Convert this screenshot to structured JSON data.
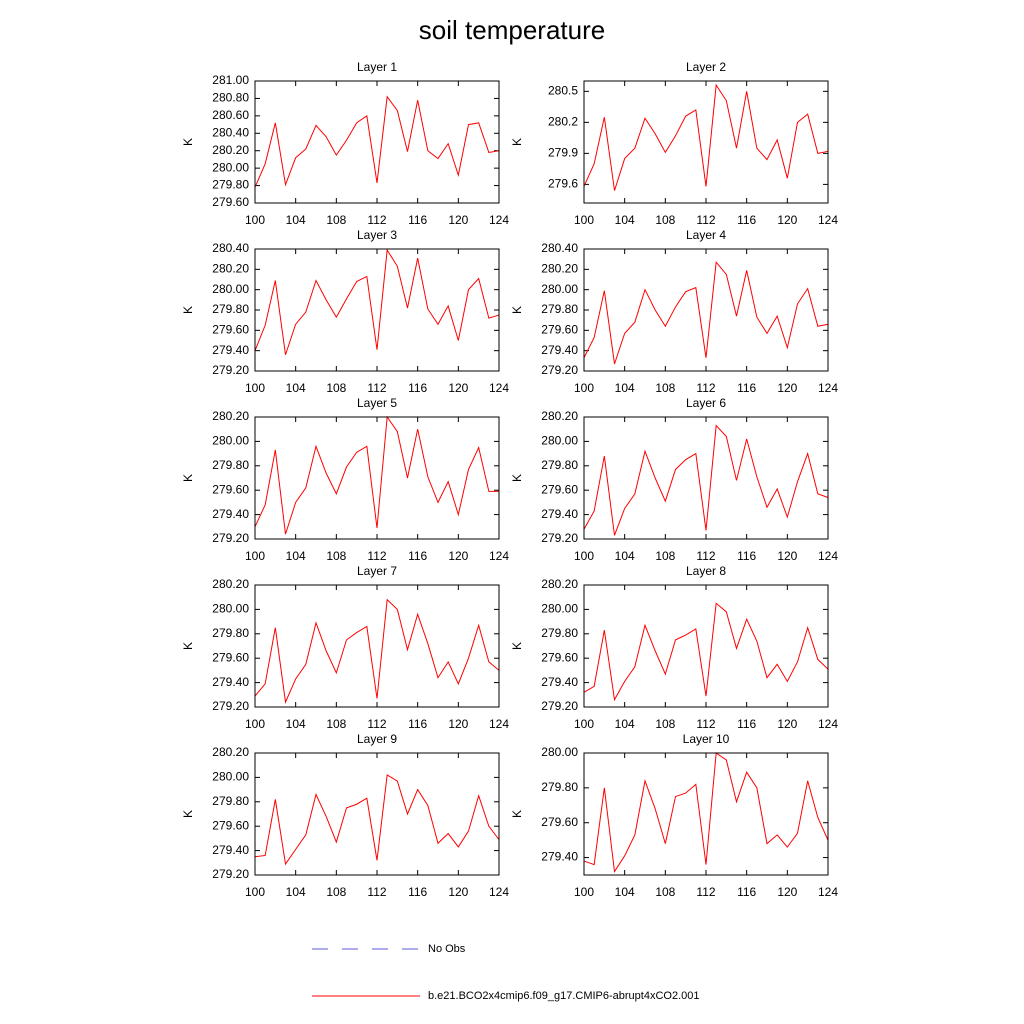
{
  "title": "soil temperature",
  "legend": [
    {
      "name": "No Obs",
      "color": "#5a5adc",
      "dash": true
    },
    {
      "name": "b.e21.BCO2x4cmip6.f09_g17.CMIP6-abrupt4xCO2.001",
      "color": "#ff0000",
      "dash": false
    }
  ],
  "chart_data": [
    {
      "type": "line",
      "title": "Layer 1",
      "ylabel": "K",
      "x": [
        100,
        101,
        102,
        103,
        104,
        105,
        106,
        107,
        108,
        109,
        110,
        111,
        112,
        113,
        114,
        115,
        116,
        117,
        118,
        119,
        120,
        121,
        122,
        123,
        124
      ],
      "xlim": [
        100,
        124
      ],
      "xticks": [
        100,
        104,
        108,
        112,
        116,
        120,
        124
      ],
      "ylim": [
        279.6,
        281.0
      ],
      "yticks": [
        {
          "value": 279.6,
          "label": "279.60"
        },
        {
          "value": 279.8,
          "label": "279.80"
        },
        {
          "value": 280.0,
          "label": "280.00"
        },
        {
          "value": 280.2,
          "label": "280.20"
        },
        {
          "value": 280.4,
          "label": "280.40"
        },
        {
          "value": 280.6,
          "label": "280.60"
        },
        {
          "value": 280.8,
          "label": "280.80"
        },
        {
          "value": 281.0,
          "label": "281.00"
        }
      ],
      "series": [
        {
          "color": "#ff0000",
          "values": [
            279.78,
            280.05,
            280.52,
            279.81,
            280.12,
            280.22,
            280.49,
            280.36,
            280.15,
            280.32,
            280.52,
            280.6,
            279.83,
            280.82,
            280.66,
            280.19,
            280.78,
            280.2,
            280.11,
            280.28,
            279.92,
            280.5,
            280.52,
            280.18,
            280.2
          ]
        }
      ]
    },
    {
      "type": "line",
      "title": "Layer 2",
      "ylabel": "K",
      "x": [
        100,
        101,
        102,
        103,
        104,
        105,
        106,
        107,
        108,
        109,
        110,
        111,
        112,
        113,
        114,
        115,
        116,
        117,
        118,
        119,
        120,
        121,
        122,
        123,
        124
      ],
      "xlim": [
        100,
        124
      ],
      "xticks": [
        100,
        104,
        108,
        112,
        116,
        120,
        124
      ],
      "ylim": [
        279.42,
        280.6
      ],
      "yticks": [
        279.6,
        279.9,
        280.2,
        280.5
      ],
      "series": [
        {
          "color": "#ff0000",
          "values": [
            279.58,
            279.8,
            280.25,
            279.54,
            279.85,
            279.95,
            280.24,
            280.09,
            279.91,
            280.07,
            280.26,
            280.32,
            279.58,
            280.56,
            280.41,
            279.95,
            280.5,
            279.95,
            279.84,
            280.03,
            279.66,
            280.2,
            280.28,
            279.9,
            279.92
          ]
        }
      ]
    },
    {
      "type": "line",
      "title": "Layer 3",
      "ylabel": "K",
      "x": [
        100,
        101,
        102,
        103,
        104,
        105,
        106,
        107,
        108,
        109,
        110,
        111,
        112,
        113,
        114,
        115,
        116,
        117,
        118,
        119,
        120,
        121,
        122,
        123,
        124
      ],
      "xlim": [
        100,
        124
      ],
      "xticks": [
        100,
        104,
        108,
        112,
        116,
        120,
        124
      ],
      "ylim": [
        279.2,
        280.4
      ],
      "yticks": [
        {
          "value": 279.2,
          "label": "279.20"
        },
        {
          "value": 279.4,
          "label": "279.40"
        },
        {
          "value": 279.6,
          "label": "279.60"
        },
        {
          "value": 279.8,
          "label": "279.80"
        },
        {
          "value": 280.0,
          "label": "280.00"
        },
        {
          "value": 280.2,
          "label": "280.20"
        },
        {
          "value": 280.4,
          "label": "280.40"
        }
      ],
      "series": [
        {
          "color": "#ff0000",
          "values": [
            279.4,
            279.65,
            280.09,
            279.36,
            279.66,
            279.78,
            280.09,
            279.9,
            279.73,
            279.91,
            280.08,
            280.13,
            279.41,
            280.39,
            280.23,
            279.82,
            280.31,
            279.81,
            279.66,
            279.84,
            279.5,
            280.0,
            280.11,
            279.72,
            279.75
          ]
        }
      ]
    },
    {
      "type": "line",
      "title": "Layer 4",
      "ylabel": "K",
      "x": [
        100,
        101,
        102,
        103,
        104,
        105,
        106,
        107,
        108,
        109,
        110,
        111,
        112,
        113,
        114,
        115,
        116,
        117,
        118,
        119,
        120,
        121,
        122,
        123,
        124
      ],
      "xlim": [
        100,
        124
      ],
      "xticks": [
        100,
        104,
        108,
        112,
        116,
        120,
        124
      ],
      "ylim": [
        279.2,
        280.4
      ],
      "yticks": [
        {
          "value": 279.2,
          "label": "279.20"
        },
        {
          "value": 279.4,
          "label": "279.40"
        },
        {
          "value": 279.6,
          "label": "279.60"
        },
        {
          "value": 279.8,
          "label": "279.80"
        },
        {
          "value": 280.0,
          "label": "280.00"
        },
        {
          "value": 280.2,
          "label": "280.20"
        },
        {
          "value": 280.4,
          "label": "280.40"
        }
      ],
      "series": [
        {
          "color": "#ff0000",
          "values": [
            279.33,
            279.53,
            279.99,
            279.27,
            279.57,
            279.68,
            280.0,
            279.8,
            279.64,
            279.83,
            279.98,
            280.02,
            279.33,
            280.27,
            280.15,
            279.74,
            280.19,
            279.73,
            279.57,
            279.74,
            279.43,
            279.86,
            280.01,
            279.64,
            279.66
          ]
        }
      ]
    },
    {
      "type": "line",
      "title": "Layer 5",
      "ylabel": "K",
      "x": [
        100,
        101,
        102,
        103,
        104,
        105,
        106,
        107,
        108,
        109,
        110,
        111,
        112,
        113,
        114,
        115,
        116,
        117,
        118,
        119,
        120,
        121,
        122,
        123,
        124
      ],
      "xlim": [
        100,
        124
      ],
      "xticks": [
        100,
        104,
        108,
        112,
        116,
        120,
        124
      ],
      "ylim": [
        279.2,
        280.2
      ],
      "yticks": [
        {
          "value": 279.2,
          "label": "279.20"
        },
        {
          "value": 279.4,
          "label": "279.40"
        },
        {
          "value": 279.6,
          "label": "279.60"
        },
        {
          "value": 279.8,
          "label": "279.80"
        },
        {
          "value": 280.0,
          "label": "280.00"
        },
        {
          "value": 280.2,
          "label": "280.20"
        }
      ],
      "series": [
        {
          "color": "#ff0000",
          "values": [
            279.3,
            279.48,
            279.93,
            279.24,
            279.5,
            279.62,
            279.96,
            279.74,
            279.57,
            279.79,
            279.91,
            279.96,
            279.29,
            280.2,
            280.08,
            279.7,
            280.1,
            279.71,
            279.5,
            279.67,
            279.4,
            279.77,
            279.95,
            279.59,
            279.59
          ]
        }
      ]
    },
    {
      "type": "line",
      "title": "Layer 6",
      "ylabel": "K",
      "x": [
        100,
        101,
        102,
        103,
        104,
        105,
        106,
        107,
        108,
        109,
        110,
        111,
        112,
        113,
        114,
        115,
        116,
        117,
        118,
        119,
        120,
        121,
        122,
        123,
        124
      ],
      "xlim": [
        100,
        124
      ],
      "xticks": [
        100,
        104,
        108,
        112,
        116,
        120,
        124
      ],
      "ylim": [
        279.2,
        280.2
      ],
      "yticks": [
        {
          "value": 279.2,
          "label": "279.20"
        },
        {
          "value": 279.4,
          "label": "279.40"
        },
        {
          "value": 279.6,
          "label": "279.60"
        },
        {
          "value": 279.8,
          "label": "279.80"
        },
        {
          "value": 280.0,
          "label": "280.00"
        },
        {
          "value": 280.2,
          "label": "280.20"
        }
      ],
      "series": [
        {
          "color": "#ff0000",
          "values": [
            279.28,
            279.43,
            279.88,
            279.23,
            279.45,
            279.57,
            279.92,
            279.7,
            279.51,
            279.77,
            279.85,
            279.9,
            279.27,
            280.13,
            280.04,
            279.68,
            280.02,
            279.71,
            279.46,
            279.61,
            279.38,
            279.67,
            279.9,
            279.57,
            279.54
          ]
        }
      ]
    },
    {
      "type": "line",
      "title": "Layer 7",
      "ylabel": "K",
      "x": [
        100,
        101,
        102,
        103,
        104,
        105,
        106,
        107,
        108,
        109,
        110,
        111,
        112,
        113,
        114,
        115,
        116,
        117,
        118,
        119,
        120,
        121,
        122,
        123,
        124
      ],
      "xlim": [
        100,
        124
      ],
      "xticks": [
        100,
        104,
        108,
        112,
        116,
        120,
        124
      ],
      "ylim": [
        279.2,
        280.2
      ],
      "yticks": [
        {
          "value": 279.2,
          "label": "279.20"
        },
        {
          "value": 279.4,
          "label": "279.40"
        },
        {
          "value": 279.6,
          "label": "279.60"
        },
        {
          "value": 279.8,
          "label": "279.80"
        },
        {
          "value": 280.0,
          "label": "280.00"
        },
        {
          "value": 280.2,
          "label": "280.20"
        }
      ],
      "series": [
        {
          "color": "#ff0000",
          "values": [
            279.29,
            279.39,
            279.85,
            279.24,
            279.43,
            279.55,
            279.89,
            279.66,
            279.48,
            279.75,
            279.81,
            279.86,
            279.27,
            280.08,
            280.0,
            279.67,
            279.96,
            279.72,
            279.44,
            279.57,
            279.39,
            279.6,
            279.87,
            279.57,
            279.5
          ]
        }
      ]
    },
    {
      "type": "line",
      "title": "Layer 8",
      "ylabel": "K",
      "x": [
        100,
        101,
        102,
        103,
        104,
        105,
        106,
        107,
        108,
        109,
        110,
        111,
        112,
        113,
        114,
        115,
        116,
        117,
        118,
        119,
        120,
        121,
        122,
        123,
        124
      ],
      "xlim": [
        100,
        124
      ],
      "xticks": [
        100,
        104,
        108,
        112,
        116,
        120,
        124
      ],
      "ylim": [
        279.2,
        280.2
      ],
      "yticks": [
        {
          "value": 279.2,
          "label": "279.20"
        },
        {
          "value": 279.4,
          "label": "279.40"
        },
        {
          "value": 279.6,
          "label": "279.60"
        },
        {
          "value": 279.8,
          "label": "279.80"
        },
        {
          "value": 280.0,
          "label": "280.00"
        },
        {
          "value": 280.2,
          "label": "280.20"
        }
      ],
      "series": [
        {
          "color": "#ff0000",
          "values": [
            279.32,
            279.37,
            279.83,
            279.26,
            279.41,
            279.53,
            279.87,
            279.66,
            279.47,
            279.75,
            279.79,
            279.84,
            279.29,
            280.05,
            279.98,
            279.68,
            279.92,
            279.74,
            279.44,
            279.55,
            279.41,
            279.57,
            279.85,
            279.59,
            279.51
          ]
        }
      ]
    },
    {
      "type": "line",
      "title": "Layer 9",
      "ylabel": "K",
      "x": [
        100,
        101,
        102,
        103,
        104,
        105,
        106,
        107,
        108,
        109,
        110,
        111,
        112,
        113,
        114,
        115,
        116,
        117,
        118,
        119,
        120,
        121,
        122,
        123,
        124
      ],
      "xlim": [
        100,
        124
      ],
      "xticks": [
        100,
        104,
        108,
        112,
        116,
        120,
        124
      ],
      "ylim": [
        279.2,
        280.2
      ],
      "yticks": [
        {
          "value": 279.2,
          "label": "279.20"
        },
        {
          "value": 279.4,
          "label": "279.40"
        },
        {
          "value": 279.6,
          "label": "279.60"
        },
        {
          "value": 279.8,
          "label": "279.80"
        },
        {
          "value": 280.0,
          "label": "280.00"
        },
        {
          "value": 280.2,
          "label": "280.20"
        }
      ],
      "series": [
        {
          "color": "#ff0000",
          "values": [
            279.35,
            279.36,
            279.82,
            279.29,
            279.41,
            279.53,
            279.86,
            279.68,
            279.47,
            279.75,
            279.78,
            279.83,
            279.32,
            280.02,
            279.97,
            279.7,
            279.9,
            279.77,
            279.46,
            279.54,
            279.43,
            279.56,
            279.85,
            279.6,
            279.49
          ]
        }
      ]
    },
    {
      "type": "line",
      "title": "Layer 10",
      "ylabel": "K",
      "x": [
        100,
        101,
        102,
        103,
        104,
        105,
        106,
        107,
        108,
        109,
        110,
        111,
        112,
        113,
        114,
        115,
        116,
        117,
        118,
        119,
        120,
        121,
        122,
        123,
        124
      ],
      "xlim": [
        100,
        124
      ],
      "xticks": [
        100,
        104,
        108,
        112,
        116,
        120,
        124
      ],
      "ylim": [
        279.3,
        280.0
      ],
      "yticks": [
        {
          "value": 279.4,
          "label": "279.40"
        },
        {
          "value": 279.6,
          "label": "279.60"
        },
        {
          "value": 279.8,
          "label": "279.80"
        },
        {
          "value": 280.0,
          "label": "280.00"
        }
      ],
      "series": [
        {
          "color": "#ff0000",
          "values": [
            279.38,
            279.36,
            279.8,
            279.32,
            279.41,
            279.53,
            279.84,
            279.68,
            279.48,
            279.75,
            279.77,
            279.82,
            279.36,
            280.0,
            279.96,
            279.72,
            279.89,
            279.8,
            279.48,
            279.53,
            279.46,
            279.54,
            279.84,
            279.63,
            279.5
          ]
        }
      ]
    }
  ]
}
